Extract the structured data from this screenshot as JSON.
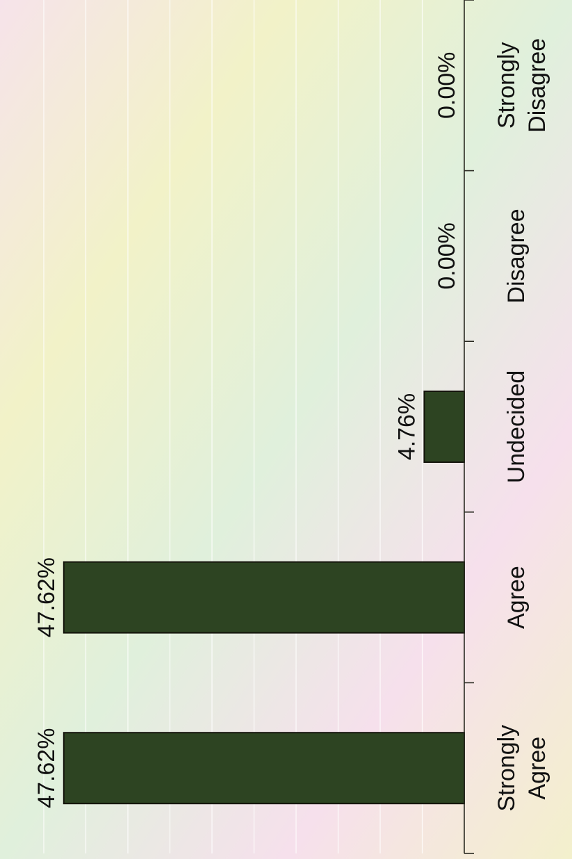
{
  "chart_data": {
    "type": "bar",
    "categories": [
      "Strongly Agree",
      "Agree",
      "Undecided",
      "Disagree",
      "Strongly Disagree"
    ],
    "category_lines": [
      [
        "Strongly",
        "Agree"
      ],
      [
        "Agree"
      ],
      [
        "Undecided"
      ],
      [
        "Disagree"
      ],
      [
        "Strongly",
        "Disagree"
      ]
    ],
    "values": [
      47.62,
      47.62,
      4.76,
      0.0,
      0.0
    ],
    "data_labels": [
      "47.62%",
      "47.62%",
      "4.76%",
      "0.00%",
      "0.00%"
    ],
    "ylim": [
      0,
      50
    ],
    "grid": true,
    "orientation": "rotated-90-ccw",
    "title": "",
    "xlabel": "",
    "ylabel": ""
  },
  "colors": {
    "bar_fill": "#2d4422",
    "bar_edge": "#14140c",
    "axis": "#2a2a22",
    "grid": "#ffffff",
    "text": "#111111",
    "background": "#f3efcf"
  }
}
